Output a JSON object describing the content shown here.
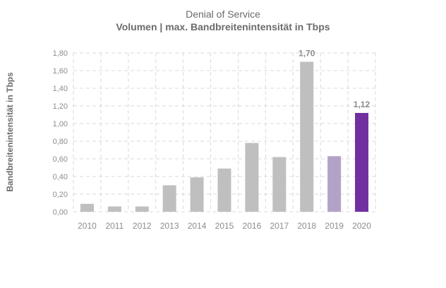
{
  "chart_data": {
    "type": "bar",
    "title": "Denial of Service",
    "subtitle": "Volumen | max. Bandbreitenintensität in Tbps",
    "xlabel": "",
    "ylabel": "Bandbreitenintensität in Tbps",
    "ylim": [
      0,
      1.8
    ],
    "yticks": [
      "0,00",
      "0,20",
      "0,40",
      "0,60",
      "0,80",
      "1,00",
      "1,20",
      "1,40",
      "1,60",
      "1,80"
    ],
    "grid": true,
    "categories": [
      "2010",
      "2011",
      "2012",
      "2013",
      "2014",
      "2015",
      "2016",
      "2017",
      "2018",
      "2019",
      "2020"
    ],
    "values": [
      0.09,
      0.06,
      0.06,
      0.3,
      0.39,
      0.49,
      0.78,
      0.62,
      1.7,
      0.63,
      1.12
    ],
    "data_labels": [
      {
        "category": "2018",
        "text": "1,70"
      },
      {
        "category": "2020",
        "text": "1,12"
      }
    ],
    "colors": {
      "default": "#bfbfbf",
      "2019": "#b3a2c7",
      "2020": "#7030a0"
    }
  }
}
